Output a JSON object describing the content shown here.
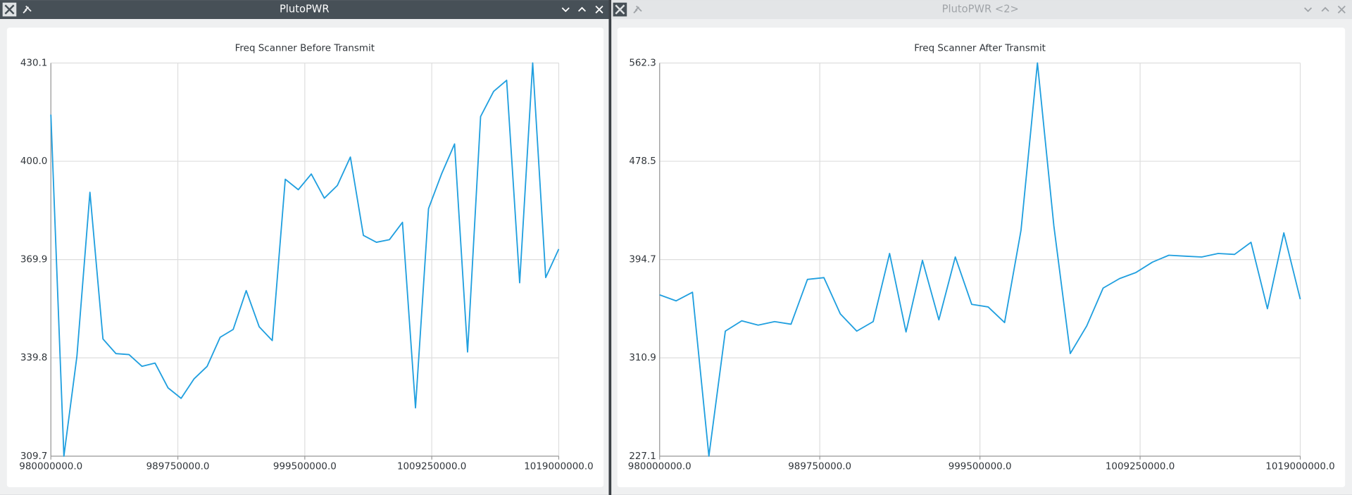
{
  "windows": [
    {
      "title": "PlutoPWR"
    },
    {
      "title": "PlutoPWR <2>"
    }
  ],
  "chart_data": [
    {
      "type": "line",
      "title": "Freq Scanner Before Transmit",
      "color": "#209fdf",
      "grid": true,
      "x": [
        980000000,
        981000000,
        982000000,
        983000000,
        984000000,
        985000000,
        986000000,
        987000000,
        988000000,
        989000000,
        990000000,
        991000000,
        992000000,
        993000000,
        994000000,
        995000000,
        996000000,
        997000000,
        998000000,
        999000000,
        1000000000,
        1001000000,
        1002000000,
        1003000000,
        1004000000,
        1005000000,
        1006000000,
        1007000000,
        1008000000,
        1009000000,
        1010000000,
        1011000000,
        1012000000,
        1013000000,
        1014000000,
        1015000000,
        1016000000,
        1017000000,
        1018000000,
        1019000000
      ],
      "values": [
        414.3,
        309.7,
        340.3,
        390.5,
        345.6,
        341.1,
        340.8,
        337.2,
        338.2,
        330.6,
        327.4,
        333.4,
        337.2,
        346.1,
        348.5,
        360.4,
        349.3,
        345.1,
        394.5,
        391.3,
        396.1,
        388.7,
        392.6,
        401.3,
        377.3,
        375.2,
        376.0,
        381.3,
        324.5,
        385.5,
        396.1,
        405.3,
        341.6,
        413.7,
        421.4,
        424.8,
        362.8,
        430.1,
        364.4,
        373.1
      ],
      "xlim": [
        980000000,
        1019000000
      ],
      "xticks": [
        {
          "value": 980000000,
          "label": "980000000.0"
        },
        {
          "value": 989750000,
          "label": "989750000.0"
        },
        {
          "value": 999500000,
          "label": "999500000.0"
        },
        {
          "value": 1009250000,
          "label": "1009250000.0"
        },
        {
          "value": 1019000000,
          "label": "1019000000.0"
        }
      ],
      "ylim": [
        309.7,
        430.1
      ],
      "yticks": [
        309.7,
        339.8,
        369.9,
        {
          "value": 400.0,
          "label": "400.0"
        },
        430.1
      ]
    },
    {
      "type": "line",
      "title": "Freq Scanner After Transmit",
      "color": "#209fdf",
      "grid": true,
      "x": [
        980000000,
        981000000,
        982000000,
        983000000,
        984000000,
        985000000,
        986000000,
        987000000,
        988000000,
        989000000,
        990000000,
        991000000,
        992000000,
        993000000,
        994000000,
        995000000,
        996000000,
        997000000,
        998000000,
        999000000,
        1000000000,
        1001000000,
        1002000000,
        1003000000,
        1004000000,
        1005000000,
        1006000000,
        1007000000,
        1008000000,
        1009000000,
        1010000000,
        1011000000,
        1012000000,
        1013000000,
        1014000000,
        1015000000,
        1016000000,
        1017000000,
        1018000000,
        1019000000
      ],
      "values": [
        364.6,
        359.5,
        366.8,
        227.1,
        333.7,
        342.5,
        338.8,
        341.8,
        339.6,
        377.8,
        379.3,
        348.4,
        333.7,
        341.8,
        399.9,
        333.0,
        394.0,
        343.3,
        396.9,
        356.5,
        354.3,
        341.0,
        419.7,
        562.3,
        423.4,
        314.6,
        338.1,
        370.4,
        378.5,
        383.7,
        392.5,
        398.4,
        397.6,
        396.9,
        399.9,
        399.1,
        409.4,
        352.8,
        417.5,
        360.9
      ],
      "xlim": [
        980000000,
        1019000000
      ],
      "xticks": [
        {
          "value": 980000000,
          "label": "980000000.0"
        },
        {
          "value": 989750000,
          "label": "989750000.0"
        },
        {
          "value": 999500000,
          "label": "999500000.0"
        },
        {
          "value": 1009250000,
          "label": "1009250000.0"
        },
        {
          "value": 1019000000,
          "label": "1019000000.0"
        }
      ],
      "ylim": [
        227.1,
        562.3
      ],
      "yticks": [
        227.1,
        310.9,
        394.7,
        478.5,
        562.3
      ]
    }
  ]
}
